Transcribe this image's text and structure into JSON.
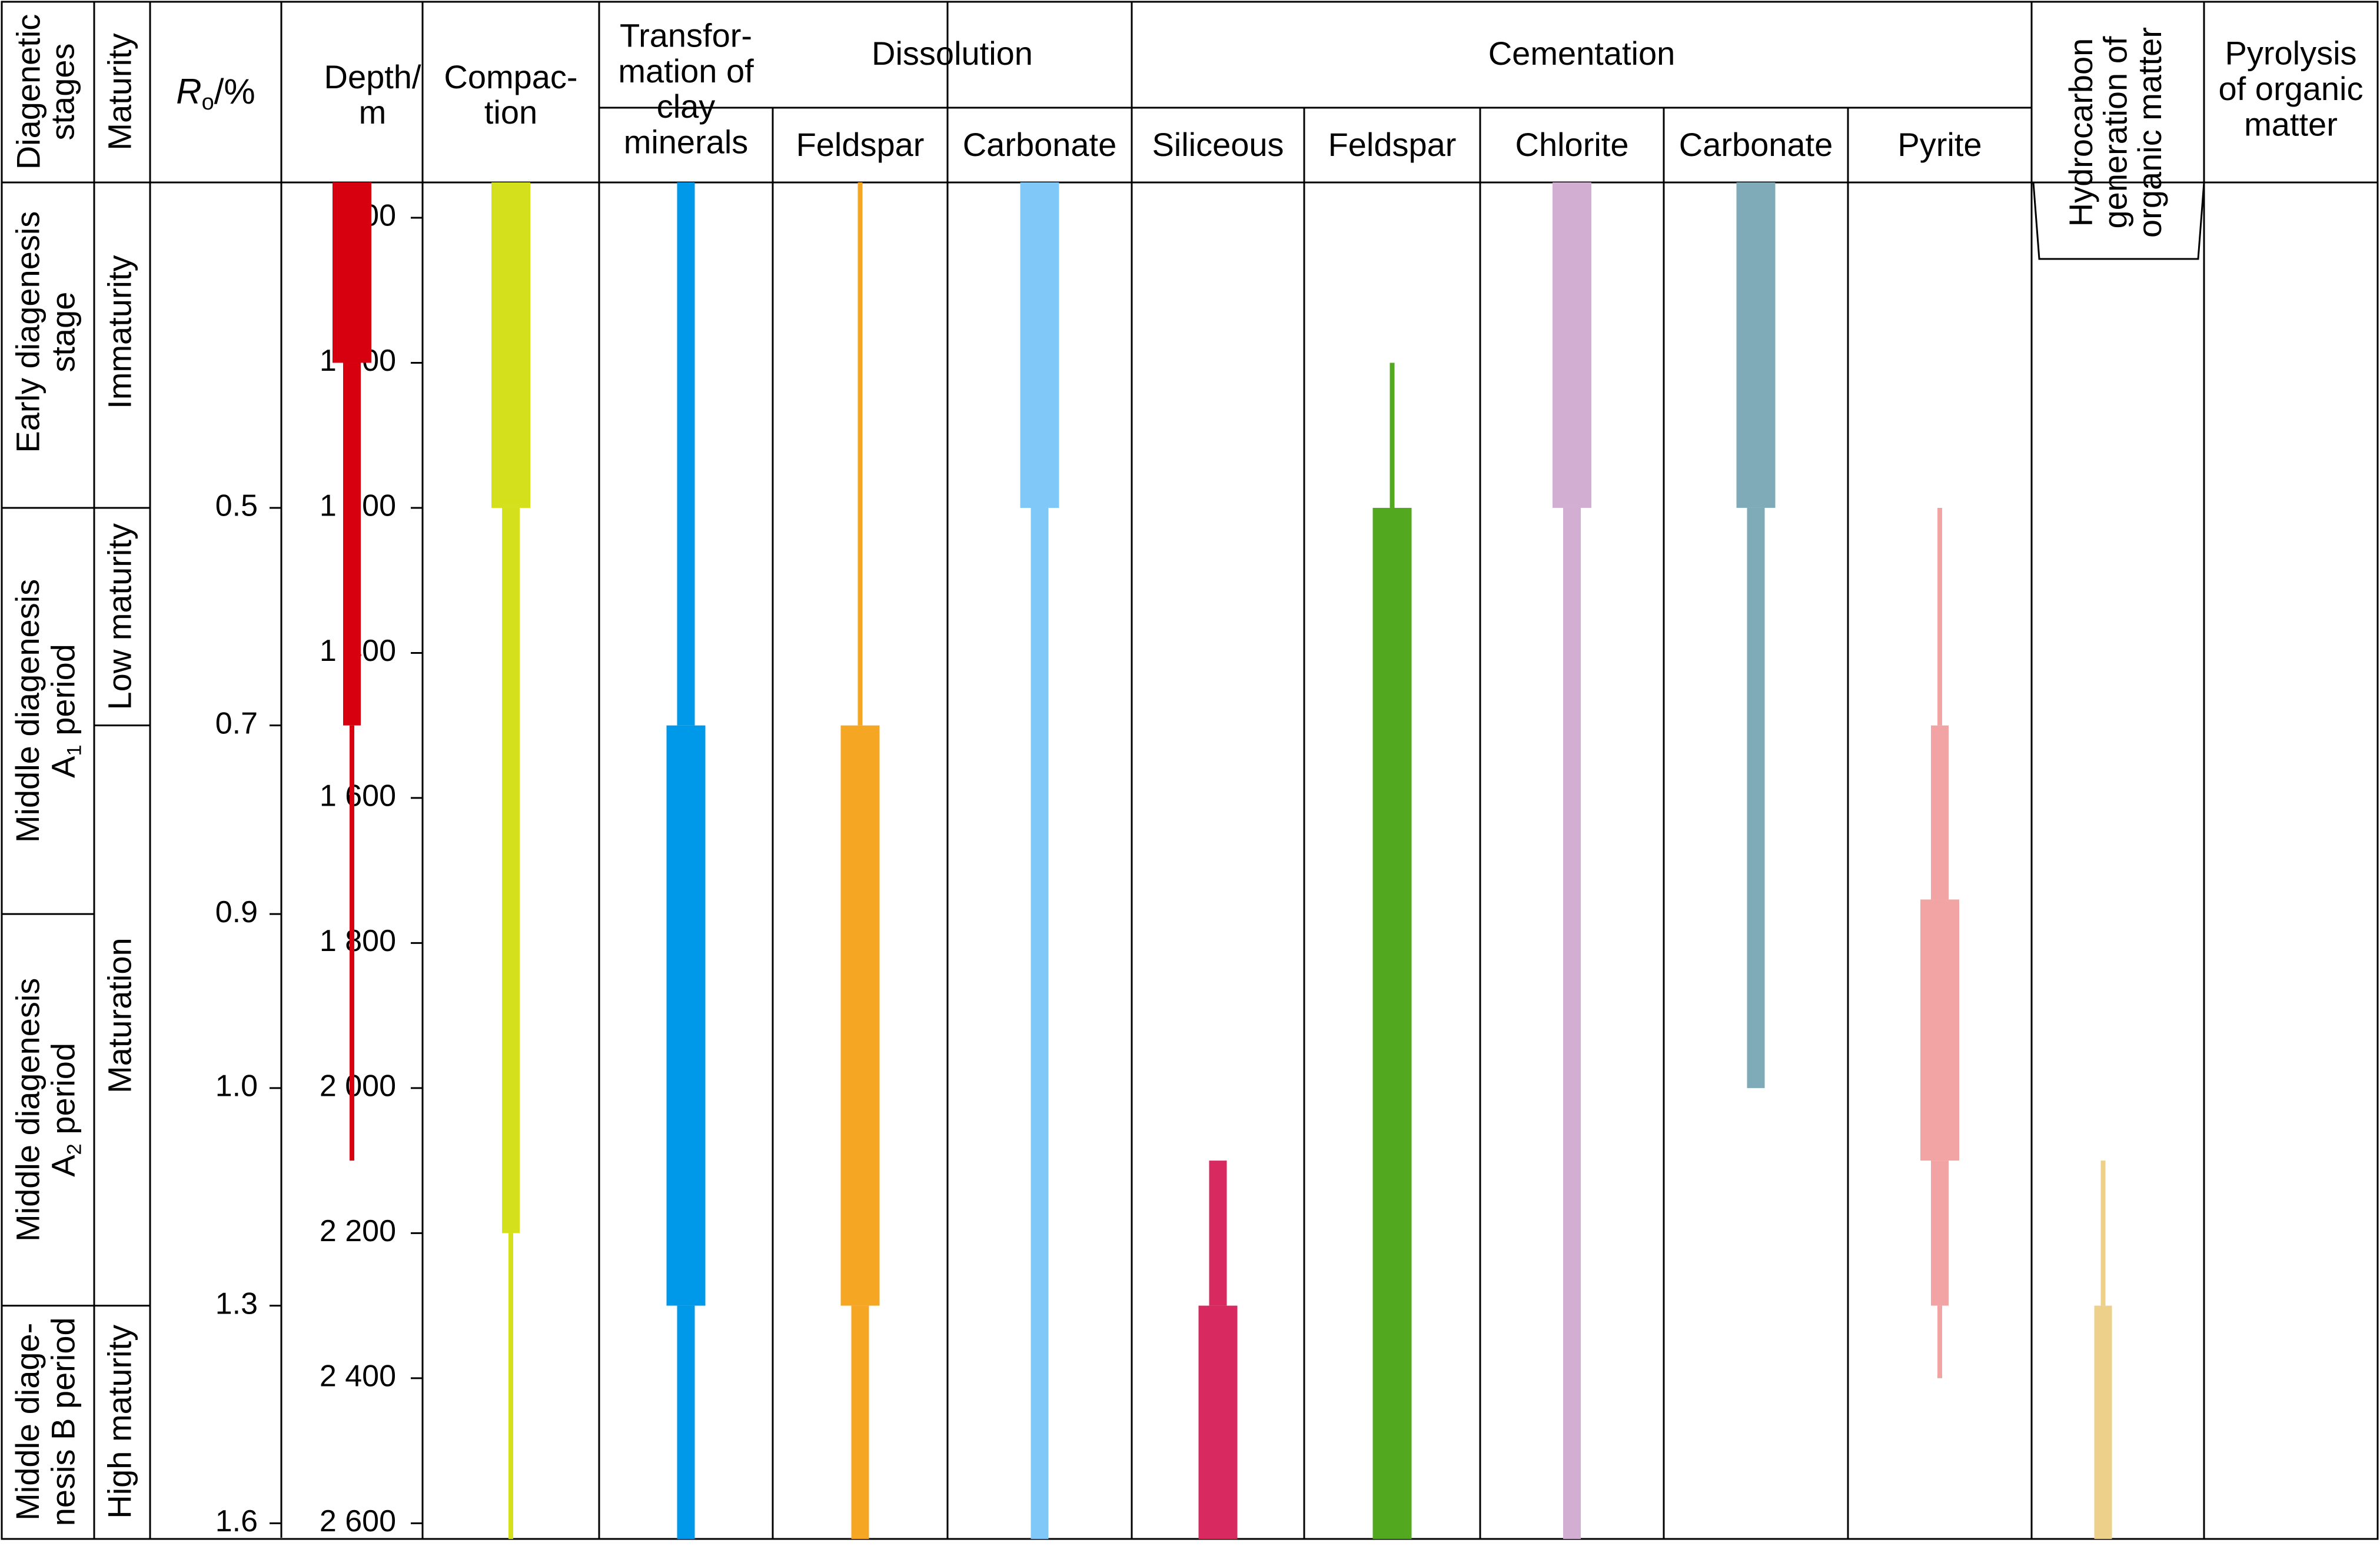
{
  "headers": {
    "stages": [
      "Diagenetic",
      "stages"
    ],
    "maturity": "Maturity",
    "ro": {
      "symbol": "R",
      "sub": "o",
      "unit": "/%"
    },
    "depth": [
      "Depth/",
      "m"
    ],
    "compaction": [
      "Compac-",
      "tion"
    ],
    "clay": [
      "Transfor-",
      "mation of",
      "clay",
      "minerals"
    ],
    "dissolution": "Dissolution",
    "cementation": "Cementation",
    "dis_feldspar": "Feldspar",
    "dis_carbonate": "Carbonate",
    "cem_siliceous": "Siliceous",
    "cem_feldspar": "Feldspar",
    "cem_chlorite": "Chlorite",
    "cem_carbonate": "Carbonate",
    "cem_pyrite": "Pyrite",
    "hydrocarbon": [
      "Hydrocarbon",
      "generation of",
      "organic matter"
    ],
    "pyrolysis": [
      "Pyrolysis",
      "of organic",
      "matter"
    ]
  },
  "stages": [
    {
      "lines": [
        "Early diagenesis",
        "stage"
      ],
      "from": 750,
      "to": 1200
    },
    {
      "lines": [
        "Middle diagenesis",
        "A|1| period"
      ],
      "from": 1200,
      "to": 1760
    },
    {
      "lines": [
        "Middle diagenesis",
        "A|2| period"
      ],
      "from": 1760,
      "to": 2300
    },
    {
      "lines": [
        "Middle diage-",
        "nesis B period"
      ],
      "from": 2300,
      "to": 2620
    }
  ],
  "maturity": [
    {
      "label": "Immaturity",
      "from": 750,
      "to": 1200
    },
    {
      "label": "Low maturity",
      "from": 1200,
      "to": 1500
    },
    {
      "label": "Maturation",
      "from": 1500,
      "to": 2300
    },
    {
      "label": "High maturity",
      "from": 2300,
      "to": 2620
    }
  ],
  "ro_ticks": [
    {
      "label": "0.5",
      "depth": 1200
    },
    {
      "label": "0.7",
      "depth": 1500
    },
    {
      "label": "0.9",
      "depth": 1760
    },
    {
      "label": "1.0",
      "depth": 2000
    },
    {
      "label": "1.3",
      "depth": 2300
    },
    {
      "label": "1.6",
      "depth": 2600
    }
  ],
  "depth_ticks": [
    {
      "label": "800",
      "depth": 800
    },
    {
      "label": "1 000",
      "depth": 1000
    },
    {
      "label": "1 200",
      "depth": 1200
    },
    {
      "label": "1 400",
      "depth": 1400
    },
    {
      "label": "1 600",
      "depth": 1600
    },
    {
      "label": "1 800",
      "depth": 1800
    },
    {
      "label": "2 000",
      "depth": 2000
    },
    {
      "label": "2 200",
      "depth": 2200
    },
    {
      "label": "2 400",
      "depth": 2400
    },
    {
      "label": "2 600",
      "depth": 2600
    }
  ],
  "chart_data": {
    "type": "range-bar",
    "y_unit": "Depth (m)",
    "ylim": [
      750,
      2620
    ],
    "intensity_levels": [
      "weak",
      "moderate",
      "strong"
    ],
    "processes": [
      {
        "name": "Compaction",
        "color": "#d7000f",
        "segments": [
          {
            "from": 750,
            "to": 1000,
            "intensity": "strong"
          },
          {
            "from": 1000,
            "to": 1500,
            "intensity": "moderate"
          },
          {
            "from": 1500,
            "to": 2100,
            "intensity": "weak"
          }
        ]
      },
      {
        "name": "Transformation of clay minerals",
        "color": "#d4e01c",
        "segments": [
          {
            "from": 750,
            "to": 1200,
            "intensity": "strong"
          },
          {
            "from": 1200,
            "to": 2200,
            "intensity": "moderate"
          },
          {
            "from": 2200,
            "to": 2620,
            "intensity": "weak"
          }
        ]
      },
      {
        "name": "Dissolution - Feldspar",
        "color": "#0098e8",
        "segments": [
          {
            "from": 750,
            "to": 1500,
            "intensity": "moderate"
          },
          {
            "from": 1500,
            "to": 2300,
            "intensity": "strong"
          },
          {
            "from": 2300,
            "to": 2620,
            "intensity": "moderate"
          }
        ]
      },
      {
        "name": "Dissolution - Carbonate",
        "color": "#f5a623",
        "segments": [
          {
            "from": 750,
            "to": 1500,
            "intensity": "weak"
          },
          {
            "from": 1500,
            "to": 2300,
            "intensity": "strong"
          },
          {
            "from": 2300,
            "to": 2620,
            "intensity": "moderate"
          }
        ]
      },
      {
        "name": "Cementation - Siliceous",
        "color": "#80c8f8",
        "segments": [
          {
            "from": 750,
            "to": 1200,
            "intensity": "strong"
          },
          {
            "from": 1200,
            "to": 2620,
            "intensity": "moderate"
          }
        ]
      },
      {
        "name": "Cementation - Feldspar",
        "color": "#d82a60",
        "segments": [
          {
            "from": 2100,
            "to": 2300,
            "intensity": "moderate"
          },
          {
            "from": 2300,
            "to": 2620,
            "intensity": "strong"
          }
        ]
      },
      {
        "name": "Cementation - Chlorite",
        "color": "#52a81e",
        "segments": [
          {
            "from": 1000,
            "to": 1200,
            "intensity": "weak"
          },
          {
            "from": 1200,
            "to": 2620,
            "intensity": "strong"
          }
        ]
      },
      {
        "name": "Cementation - Carbonate",
        "color": "#d1aed2",
        "segments": [
          {
            "from": 750,
            "to": 1200,
            "intensity": "strong"
          },
          {
            "from": 1200,
            "to": 2620,
            "intensity": "moderate"
          }
        ]
      },
      {
        "name": "Cementation - Pyrite",
        "color": "#7fabb9",
        "segments": [
          {
            "from": 750,
            "to": 1200,
            "intensity": "strong"
          },
          {
            "from": 1200,
            "to": 2000,
            "intensity": "moderate"
          }
        ]
      },
      {
        "name": "Hydrocarbon generation of organic matter",
        "color": "#f2a3a3",
        "segments": [
          {
            "from": 1200,
            "to": 1500,
            "intensity": "weak"
          },
          {
            "from": 1500,
            "to": 1740,
            "intensity": "moderate"
          },
          {
            "from": 1740,
            "to": 2100,
            "intensity": "strong"
          },
          {
            "from": 2100,
            "to": 2300,
            "intensity": "moderate"
          },
          {
            "from": 2300,
            "to": 2400,
            "intensity": "weak"
          }
        ]
      },
      {
        "name": "Pyrolysis of organic matter",
        "color": "#edd089",
        "segments": [
          {
            "from": 2100,
            "to": 2300,
            "intensity": "weak"
          },
          {
            "from": 2300,
            "to": 2620,
            "intensity": "moderate"
          }
        ]
      }
    ]
  }
}
